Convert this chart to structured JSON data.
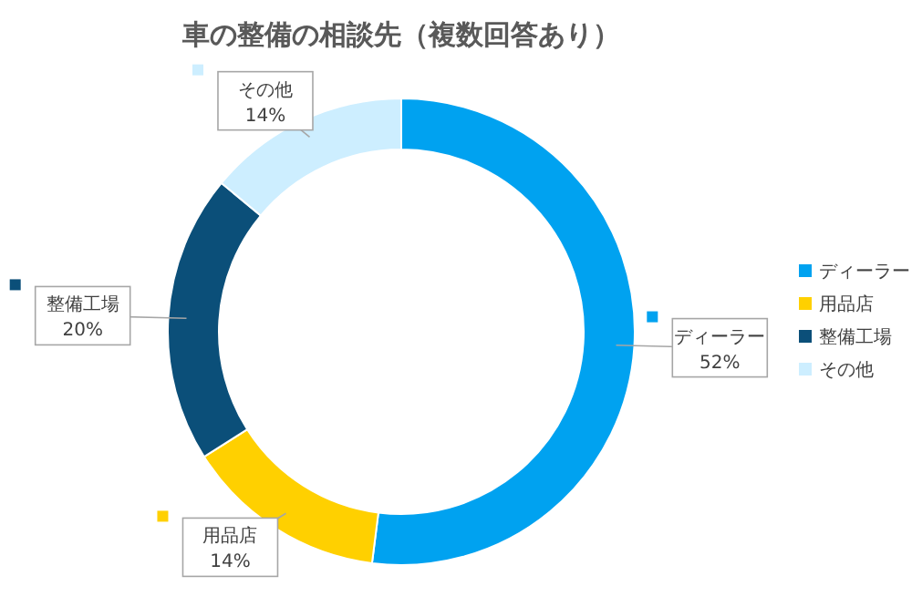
{
  "chart_data": {
    "type": "donut",
    "title": "車の整備の相談先（複数回答あり）",
    "categories": [
      "ディーラー",
      "用品店",
      "整備工場",
      "その他"
    ],
    "values": [
      52,
      14,
      20,
      14
    ],
    "value_labels": [
      "52%",
      "14%",
      "20%",
      "14%"
    ],
    "colors": [
      "#00a2f0",
      "#ffd000",
      "#0b4f79",
      "#cdeeff"
    ],
    "legend": "right"
  }
}
